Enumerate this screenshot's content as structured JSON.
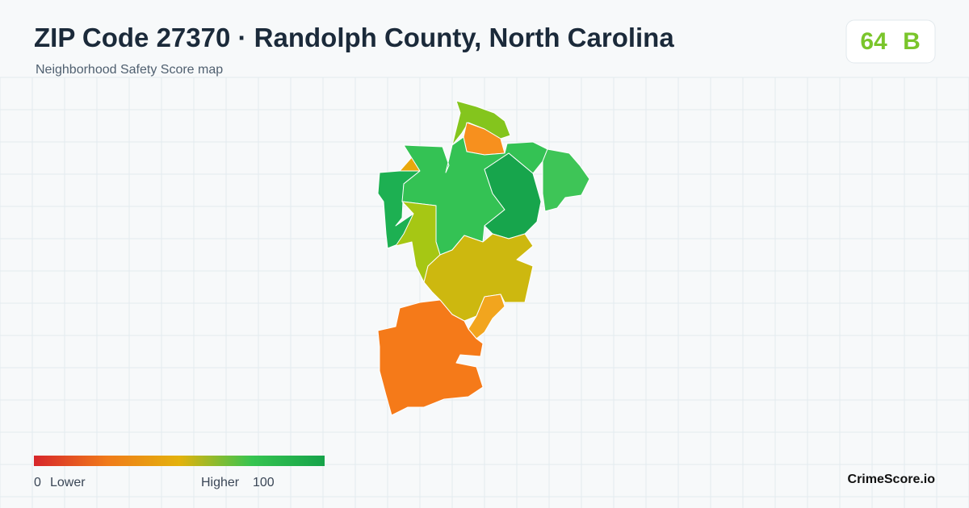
{
  "header": {
    "title": "ZIP Code 27370 · Randolph County, North Carolina",
    "subtitle": "Neighborhood Safety Score map"
  },
  "score": {
    "value": "64",
    "grade": "B"
  },
  "legend": {
    "min": "0",
    "min_label": "Lower",
    "max_label": "Higher",
    "max": "100"
  },
  "brand": "CrimeScore.io"
}
